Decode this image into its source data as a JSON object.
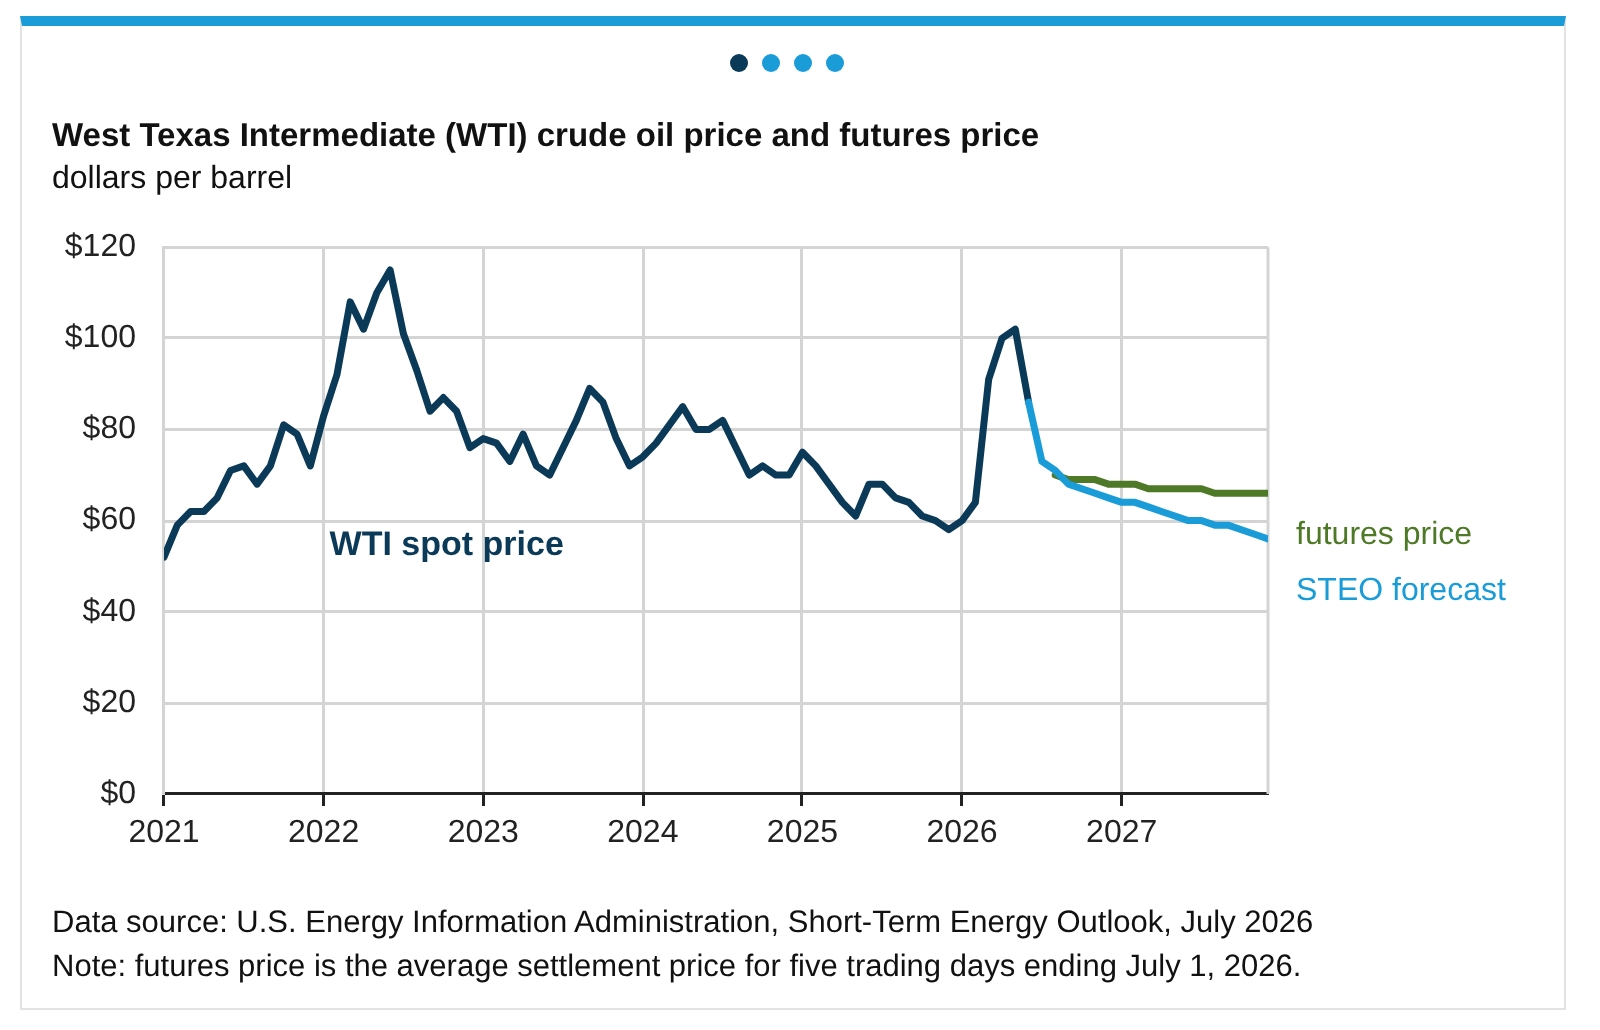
{
  "chart_data": {
    "type": "line",
    "title": "West Texas Intermediate (WTI) crude oil price and futures price",
    "subtitle": "dollars per barrel",
    "xlim": [
      "2021-01",
      "2027-12"
    ],
    "xticks": [
      "2021",
      "2022",
      "2023",
      "2024",
      "2025",
      "2026",
      "2027"
    ],
    "ylim": [
      0,
      120
    ],
    "yticks": [
      {
        "value": 0,
        "label": "$0"
      },
      {
        "value": 20,
        "label": "$20"
      },
      {
        "value": 40,
        "label": "$40"
      },
      {
        "value": 60,
        "label": "$60"
      },
      {
        "value": 80,
        "label": "$80"
      },
      {
        "value": 100,
        "label": "$100"
      },
      {
        "value": 120,
        "label": "$120"
      }
    ],
    "grid": true,
    "marker": "none",
    "line_style": "solid",
    "series": [
      {
        "name": "WTI spot price",
        "color": "#0b3a58",
        "x": [
          "2021-01",
          "2021-02",
          "2021-03",
          "2021-04",
          "2021-05",
          "2021-06",
          "2021-07",
          "2021-08",
          "2021-09",
          "2021-10",
          "2021-11",
          "2021-12",
          "2022-01",
          "2022-02",
          "2022-03",
          "2022-04",
          "2022-05",
          "2022-06",
          "2022-07",
          "2022-08",
          "2022-09",
          "2022-10",
          "2022-11",
          "2022-12",
          "2023-01",
          "2023-02",
          "2023-03",
          "2023-04",
          "2023-05",
          "2023-06",
          "2023-07",
          "2023-08",
          "2023-09",
          "2023-10",
          "2023-11",
          "2023-12",
          "2024-01",
          "2024-02",
          "2024-03",
          "2024-04",
          "2024-05",
          "2024-06",
          "2024-07",
          "2024-08",
          "2024-09",
          "2024-10",
          "2024-11",
          "2024-12",
          "2025-01",
          "2025-02",
          "2025-03",
          "2025-04",
          "2025-05",
          "2025-06",
          "2025-07",
          "2025-08",
          "2025-09",
          "2025-10",
          "2025-11",
          "2025-12",
          "2026-01",
          "2026-02",
          "2026-03",
          "2026-04",
          "2026-05",
          "2026-06"
        ],
        "values": [
          52,
          59,
          62,
          62,
          65,
          71,
          72,
          68,
          72,
          81,
          79,
          72,
          83,
          92,
          108,
          102,
          110,
          115,
          101,
          93,
          84,
          87,
          84,
          76,
          78,
          77,
          73,
          79,
          72,
          70,
          76,
          82,
          89,
          86,
          78,
          72,
          74,
          77,
          81,
          85,
          80,
          80,
          82,
          76,
          70,
          72,
          70,
          70,
          75,
          72,
          68,
          64,
          61,
          68,
          68,
          65,
          64,
          61,
          60,
          58,
          60,
          64,
          91,
          100,
          102,
          86
        ]
      },
      {
        "name": "futures price",
        "color": "#4e7a27",
        "x": [
          "2026-08",
          "2026-09",
          "2026-10",
          "2026-11",
          "2026-12",
          "2027-01",
          "2027-02",
          "2027-03",
          "2027-04",
          "2027-05",
          "2027-06",
          "2027-07",
          "2027-08",
          "2027-09",
          "2027-10",
          "2027-11",
          "2027-12"
        ],
        "values": [
          70,
          69,
          69,
          69,
          68,
          68,
          68,
          67,
          67,
          67,
          67,
          67,
          66,
          66,
          66,
          66,
          66
        ]
      },
      {
        "name": "STEO forecast",
        "color": "#1a9cd8",
        "x": [
          "2026-06",
          "2026-07",
          "2026-08",
          "2026-09",
          "2026-10",
          "2026-11",
          "2026-12",
          "2027-01",
          "2027-02",
          "2027-03",
          "2027-04",
          "2027-05",
          "2027-06",
          "2027-07",
          "2027-08",
          "2027-09",
          "2027-10",
          "2027-11",
          "2027-12"
        ],
        "values": [
          86,
          73,
          71,
          68,
          67,
          66,
          65,
          64,
          64,
          63,
          62,
          61,
          60,
          60,
          59,
          59,
          58,
          57,
          56
        ]
      }
    ],
    "annotations": [
      "Data source: U.S. Energy Information Administration, Short-Term Energy Outlook, July 2026",
      "Note: futures price is the average settlement price for five trading days ending July 1, 2026."
    ]
  }
}
